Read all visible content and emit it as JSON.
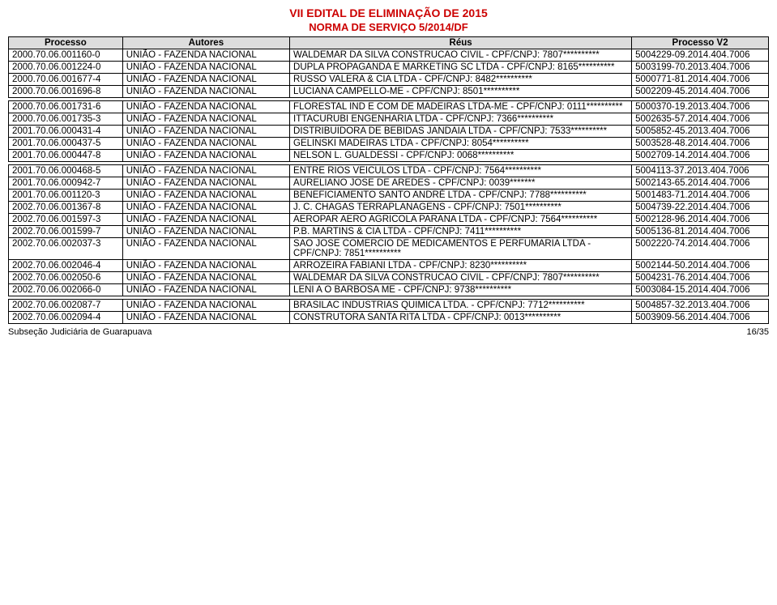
{
  "title1": "VII EDITAL DE ELIMINAÇÃO DE 2015",
  "title2": "NORMA DE SERVIÇO 5/2014/DF",
  "columns": [
    "Processo",
    "Autores",
    "Réus",
    "Processo V2"
  ],
  "rows": [
    {
      "processo": "2000.70.06.001160-0",
      "autores": "UNIÃO - FAZENDA NACIONAL",
      "reus": "WALDEMAR DA SILVA CONSTRUCAO CIVIL - CPF/CNPJ: 7807**********",
      "v2": "5004229-09.2014.404.7006"
    },
    {
      "processo": "2000.70.06.001224-0",
      "autores": "UNIÃO - FAZENDA NACIONAL",
      "reus": "DUPLA PROPAGANDA E MARKETING SC LTDA - CPF/CNPJ: 8165**********",
      "v2": "5003199-70.2013.404.7006"
    },
    {
      "processo": "2000.70.06.001677-4",
      "autores": "UNIÃO - FAZENDA NACIONAL",
      "reus": "RUSSO VALERA & CIA LTDA - CPF/CNPJ: 8482**********",
      "v2": "5000771-81.2014.404.7006"
    },
    {
      "processo": "2000.70.06.001696-8",
      "autores": "UNIÃO - FAZENDA NACIONAL",
      "reus": "LUCIANA CAMPELLO-ME - CPF/CNPJ: 8501**********",
      "v2": "5002209-45.2014.404.7006"
    },
    {
      "spacer": true
    },
    {
      "processo": "2000.70.06.001731-6",
      "autores": "UNIÃO - FAZENDA NACIONAL",
      "reus": "FLORESTAL IND E COM DE MADEIRAS LTDA-ME - CPF/CNPJ: 0111**********",
      "v2": "5000370-19.2013.404.7006"
    },
    {
      "processo": "2000.70.06.001735-3",
      "autores": "UNIÃO - FAZENDA NACIONAL",
      "reus": "ITTACURUBI ENGENHARIA LTDA - CPF/CNPJ: 7366**********",
      "v2": "5002635-57.2014.404.7006"
    },
    {
      "processo": "2001.70.06.000431-4",
      "autores": "UNIÃO - FAZENDA NACIONAL",
      "reus": "DISTRIBUIDORA DE BEBIDAS JANDAIA LTDA - CPF/CNPJ: 7533**********",
      "v2": "5005852-45.2013.404.7006"
    },
    {
      "processo": "2001.70.06.000437-5",
      "autores": "UNIÃO - FAZENDA NACIONAL",
      "reus": "GELINSKI MADEIRAS LTDA - CPF/CNPJ: 8054**********",
      "v2": "5003528-48.2014.404.7006"
    },
    {
      "processo": "2001.70.06.000447-8",
      "autores": "UNIÃO - FAZENDA NACIONAL",
      "reus": "NELSON L. GUALDESSI - CPF/CNPJ: 0068**********",
      "v2": "5002709-14.2014.404.7006"
    },
    {
      "spacer": true
    },
    {
      "processo": "2001.70.06.000468-5",
      "autores": "UNIÃO - FAZENDA NACIONAL",
      "reus": "ENTRE RIOS VEICULOS LTDA - CPF/CNPJ: 7564**********",
      "v2": "5004113-37.2013.404.7006"
    },
    {
      "processo": "2001.70.06.000942-7",
      "autores": "UNIÃO - FAZENDA NACIONAL",
      "reus": "AURELIANO JOSE DE AREDES - CPF/CNPJ: 0039*******",
      "v2": "5002143-65.2014.404.7006"
    },
    {
      "processo": "2001.70.06.001120-3",
      "autores": "UNIÃO - FAZENDA NACIONAL",
      "reus": "BENEFICIAMENTO SANTO ANDRÉ LTDA - CPF/CNPJ: 7788**********",
      "v2": "5001483-71.2014.404.7006"
    },
    {
      "processo": "2002.70.06.001367-8",
      "autores": "UNIÃO - FAZENDA NACIONAL",
      "reus": "J. C. CHAGAS TERRAPLANAGENS - CPF/CNPJ: 7501**********",
      "v2": "5004739-22.2014.404.7006"
    },
    {
      "processo": "2002.70.06.001597-3",
      "autores": "UNIÃO - FAZENDA NACIONAL",
      "reus": "AEROPAR AERO AGRICOLA PARANA LTDA - CPF/CNPJ: 7564**********",
      "v2": "5002128-96.2014.404.7006"
    },
    {
      "processo": "2002.70.06.001599-7",
      "autores": "UNIÃO - FAZENDA NACIONAL",
      "reus": "P.B. MARTINS & CIA LTDA - CPF/CNPJ: 7411**********",
      "v2": "5005136-81.2014.404.7006"
    },
    {
      "processo": "2002.70.06.002037-3",
      "autores": "UNIÃO - FAZENDA NACIONAL",
      "reus": "SAO JOSE COMERCIO DE MEDICAMENTOS E PERFUMARIA LTDA - CPF/CNPJ: 7851**********",
      "v2": "5002220-74.2014.404.7006"
    },
    {
      "processo": "2002.70.06.002046-4",
      "autores": "UNIÃO - FAZENDA NACIONAL",
      "reus": "ARROZEIRA FABIANI LTDA - CPF/CNPJ: 8230**********",
      "v2": "5002144-50.2014.404.7006"
    },
    {
      "processo": "2002.70.06.002050-6",
      "autores": "UNIÃO - FAZENDA NACIONAL",
      "reus": "WALDEMAR DA SILVA CONSTRUCAO CIVIL - CPF/CNPJ: 7807**********",
      "v2": "5004231-76.2014.404.7006"
    },
    {
      "processo": "2002.70.06.002066-0",
      "autores": "UNIÃO - FAZENDA NACIONAL",
      "reus": "LENI A O BARBOSA ME - CPF/CNPJ: 9738**********",
      "v2": "5003084-15.2014.404.7006"
    },
    {
      "spacer": true
    },
    {
      "processo": "2002.70.06.002087-7",
      "autores": "UNIÃO - FAZENDA NACIONAL",
      "reus": "BRASILAC INDUSTRIAS QUIMICA LTDA. - CPF/CNPJ: 7712**********",
      "v2": "5004857-32.2013.404.7006"
    },
    {
      "processo": "2002.70.06.002094-4",
      "autores": "UNIÃO - FAZENDA NACIONAL",
      "reus": "CONSTRUTORA SANTA RITA LTDA - CPF/CNPJ: 0013**********",
      "v2": "5003909-56.2014.404.7006"
    }
  ],
  "footer_left": "Subseção Judiciária de Guarapuava",
  "footer_right": "16/35"
}
